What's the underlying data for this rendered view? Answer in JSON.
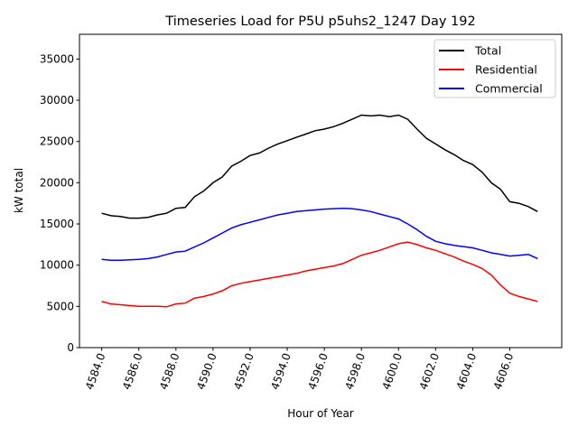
{
  "chart_data": {
    "type": "line",
    "title": "Timeseries Load for P5U p5uhs2_1247  Day 192",
    "xlabel": "Hour of Year",
    "ylabel": "kW total",
    "xlim": [
      4582.8,
      4608.8
    ],
    "ylim": [
      0,
      38000
    ],
    "xticks": [
      4584,
      4586,
      4588,
      4590,
      4592,
      4594,
      4596,
      4598,
      4600,
      4602,
      4604,
      4606
    ],
    "xtick_labels": [
      "4584.0",
      "4586.0",
      "4588.0",
      "4590.0",
      "4592.0",
      "4594.0",
      "4596.0",
      "4598.0",
      "4600.0",
      "4602.0",
      "4604.0",
      "4606.0"
    ],
    "yticks": [
      0,
      5000,
      10000,
      15000,
      20000,
      25000,
      30000,
      35000
    ],
    "ytick_labels": [
      "0",
      "5000",
      "10000",
      "15000",
      "20000",
      "25000",
      "30000",
      "35000"
    ],
    "grid": false,
    "legend_position": "top-right",
    "x": [
      4584,
      4584.5,
      4585,
      4585.5,
      4586,
      4586.5,
      4587,
      4587.5,
      4588,
      4588.5,
      4589,
      4589.5,
      4590,
      4590.5,
      4591,
      4591.5,
      4592,
      4592.5,
      4593,
      4593.5,
      4594,
      4594.5,
      4595,
      4595.5,
      4596,
      4596.5,
      4597,
      4597.5,
      4598,
      4598.5,
      4599,
      4599.5,
      4600,
      4600.5,
      4601,
      4601.5,
      4602,
      4602.5,
      4603,
      4603.5,
      4604,
      4604.5,
      4605,
      4605.5,
      4606,
      4606.5,
      4607,
      4607.5
    ],
    "series": [
      {
        "name": "Total",
        "color": "#000000",
        "values": [
          16300,
          16000,
          15900,
          15700,
          15700,
          15800,
          16100,
          16300,
          16900,
          17000,
          18300,
          19000,
          20000,
          20700,
          22000,
          22600,
          23300,
          23600,
          24200,
          24700,
          25100,
          25500,
          25900,
          26300,
          26500,
          26800,
          27200,
          27700,
          28200,
          28100,
          28200,
          28000,
          28200,
          27700,
          26500,
          25400,
          24700,
          24000,
          23400,
          22700,
          22200,
          21300,
          20000,
          19200,
          17700,
          17500,
          17100,
          16500
        ]
      },
      {
        "name": "Residential",
        "color": "#ff0000",
        "values": [
          5600,
          5300,
          5200,
          5100,
          5000,
          5000,
          5000,
          4950,
          5300,
          5400,
          6000,
          6200,
          6500,
          6900,
          7500,
          7800,
          8000,
          8200,
          8400,
          8600,
          8800,
          9000,
          9300,
          9500,
          9700,
          9900,
          10200,
          10700,
          11200,
          11500,
          11800,
          12200,
          12600,
          12800,
          12500,
          12100,
          11800,
          11400,
          11000,
          10500,
          10100,
          9600,
          8800,
          7600,
          6600,
          6200,
          5900,
          5600
        ]
      },
      {
        "name": "Commercial",
        "color": "#0000ff",
        "values": [
          10700,
          10600,
          10600,
          10650,
          10700,
          10800,
          11000,
          11300,
          11600,
          11700,
          12200,
          12700,
          13300,
          13900,
          14500,
          14900,
          15200,
          15500,
          15800,
          16100,
          16300,
          16500,
          16600,
          16700,
          16800,
          16850,
          16900,
          16850,
          16700,
          16500,
          16200,
          15900,
          15600,
          15000,
          14300,
          13500,
          12900,
          12600,
          12400,
          12250,
          12100,
          11800,
          11500,
          11300,
          11100,
          11200,
          11300,
          10800
        ]
      }
    ]
  }
}
